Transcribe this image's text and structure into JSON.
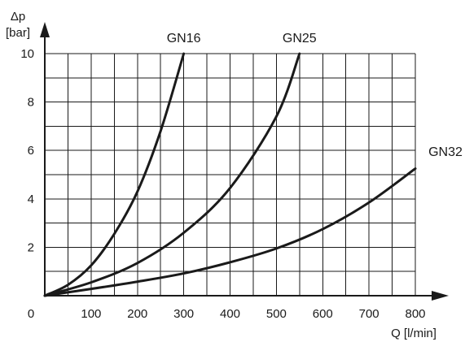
{
  "chart_data": {
    "type": "line",
    "xlabel": "Q [l/min]",
    "ylabel_symbol": "Δp",
    "ylabel_unit": "[bar]",
    "xlim": [
      0,
      800
    ],
    "ylim": [
      0,
      10
    ],
    "grid": true,
    "x_ticks": [
      0,
      100,
      200,
      300,
      400,
      500,
      600,
      700,
      800
    ],
    "x_tick_labels": [
      "0",
      "100",
      "200",
      "300",
      "400",
      "500",
      "600",
      "700",
      "800"
    ],
    "y_ticks": [
      2,
      4,
      6,
      8,
      10
    ],
    "y_tick_labels": [
      "2",
      "4",
      "6",
      "8",
      "10"
    ],
    "colors": {
      "ink": "#1a1a1a",
      "background": "#ffffff"
    },
    "series": [
      {
        "name": "GN16",
        "points": [
          [
            0,
            0
          ],
          [
            50,
            0.45
          ],
          [
            100,
            1.25
          ],
          [
            150,
            2.55
          ],
          [
            200,
            4.3
          ],
          [
            250,
            6.8
          ],
          [
            300,
            10.0
          ]
        ]
      },
      {
        "name": "GN25",
        "points": [
          [
            0,
            0
          ],
          [
            100,
            0.55
          ],
          [
            200,
            1.35
          ],
          [
            300,
            2.6
          ],
          [
            400,
            4.45
          ],
          [
            500,
            7.4
          ],
          [
            550,
            10.0
          ]
        ]
      },
      {
        "name": "GN32",
        "points": [
          [
            0,
            0
          ],
          [
            100,
            0.28
          ],
          [
            200,
            0.58
          ],
          [
            300,
            0.92
          ],
          [
            400,
            1.38
          ],
          [
            500,
            1.95
          ],
          [
            600,
            2.75
          ],
          [
            700,
            3.85
          ],
          [
            800,
            5.25
          ]
        ]
      }
    ]
  }
}
